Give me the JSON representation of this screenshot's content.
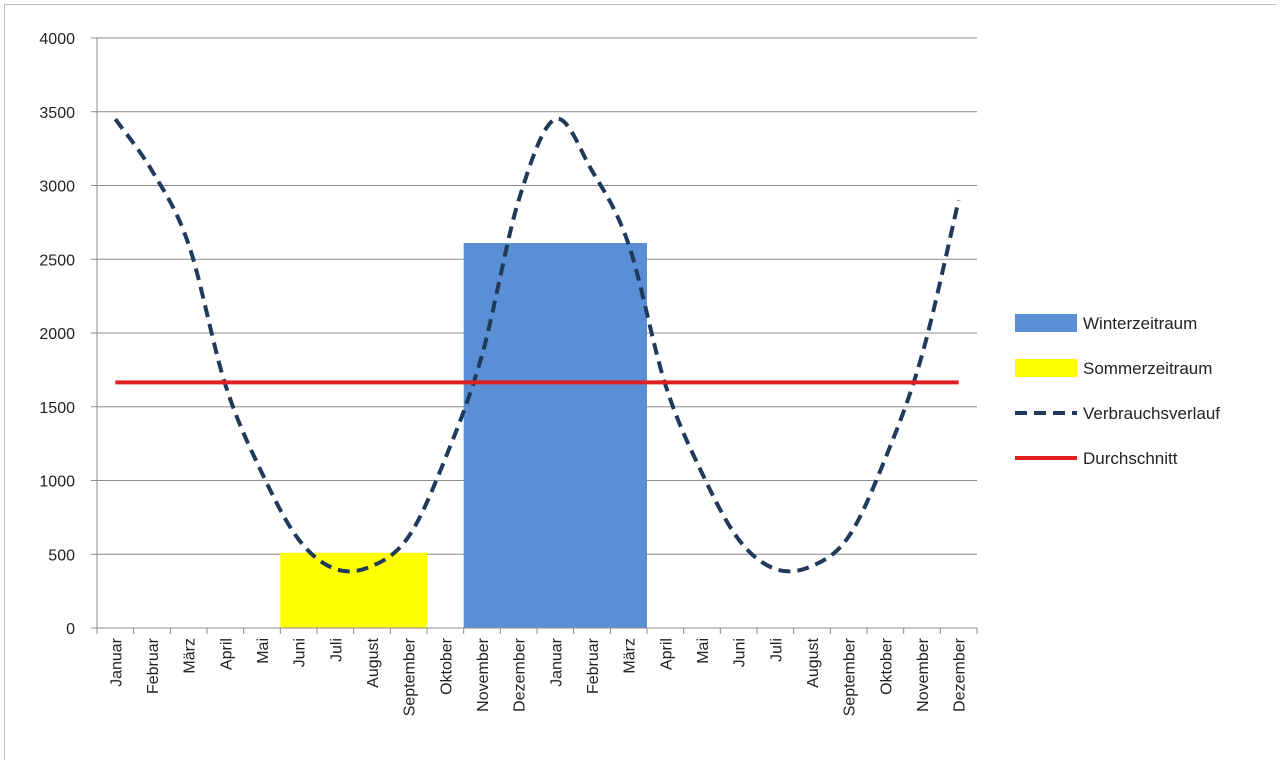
{
  "chart_data": {
    "type": "line",
    "title": "",
    "xlabel": "",
    "ylabel": "",
    "ylim": [
      0,
      4000
    ],
    "yticks": [
      0,
      500,
      1000,
      1500,
      2000,
      2500,
      3000,
      3500,
      4000
    ],
    "grid": true,
    "legend_position": "right",
    "categories": [
      "Januar",
      "Februar",
      "März",
      "April",
      "Mai",
      "Juni",
      "Juli",
      "August",
      "September",
      "Oktober",
      "November",
      "Dezember",
      "Januar",
      "Februar",
      "März",
      "April",
      "Mai",
      "Juni",
      "Juli",
      "August",
      "September",
      "Oktober",
      "November",
      "Dezember"
    ],
    "series": [
      {
        "name": "Winterzeitraum",
        "kind": "bar",
        "color": "#5b8fd5",
        "from_index": 10,
        "to_index": 14,
        "value": 2610
      },
      {
        "name": "Sommerzeitraum",
        "kind": "bar",
        "color": "#ffff00",
        "from_index": 5,
        "to_index": 8,
        "value": 510
      },
      {
        "name": "Verbrauchsverlauf",
        "kind": "line",
        "style": "dashed",
        "color": "#1f3a5a",
        "values": [
          3450,
          3100,
          2600,
          1650,
          1050,
          600,
          400,
          420,
          620,
          1150,
          1850,
          2900,
          3450,
          3100,
          2600,
          1650,
          1050,
          600,
          400,
          420,
          620,
          1150,
          1850,
          2900
        ]
      },
      {
        "name": "Durchschnitt",
        "kind": "line",
        "style": "solid",
        "color": "#e02020",
        "values": [
          1665,
          1665,
          1665,
          1665,
          1665,
          1665,
          1665,
          1665,
          1665,
          1665,
          1665,
          1665,
          1665,
          1665,
          1665,
          1665,
          1665,
          1665,
          1665,
          1665,
          1665,
          1665,
          1665,
          1665
        ]
      }
    ]
  }
}
